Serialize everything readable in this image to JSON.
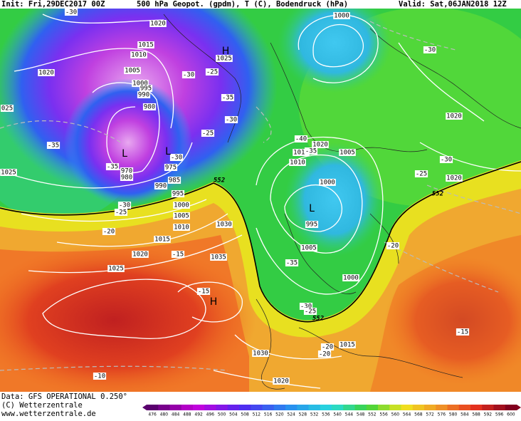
{
  "header": {
    "init": "Init: Fri,29DEC2017 00Z",
    "title": "500 hPa Geopot. (gpdm), T (C), Bodendruck (hPa)",
    "valid": "Valid: Sat,06JAN2018 12Z"
  },
  "pressure_labels": [
    "1020",
    "1015",
    "1010",
    "1005",
    "1000",
    "995",
    "990",
    "980",
    "975",
    "970",
    "980",
    "985",
    "990",
    "995",
    "1000",
    "1005",
    "1010",
    "1015",
    "1020",
    "1025",
    "1030",
    "1035",
    "1030",
    "1020",
    "1015",
    "1000",
    "1005",
    "995",
    "1000",
    "1005",
    "1010",
    "1015",
    "1020",
    "1000",
    "1020",
    "1020",
    "1020",
    "1025",
    "025",
    "1025"
  ],
  "temperature_labels": [
    "-30",
    "-30",
    "-30",
    "-25",
    "-35",
    "-30",
    "-25",
    "-30",
    "-35",
    "-35",
    "-30",
    "-25",
    "-20",
    "-15",
    "-15",
    "-10",
    "-40",
    "-35",
    "-35",
    "-30",
    "-25",
    "-20",
    "-20",
    "-20",
    "-25",
    "-30",
    "-15"
  ],
  "centers": [
    "L",
    "L",
    "L",
    "H",
    "H"
  ],
  "contour_labels": [
    "552",
    "552",
    "552"
  ],
  "footer": {
    "data": "Data: GFS OPERATIONAL 0.250°",
    "copyright": "(C) Wetterzentrale",
    "url": "www.wetterzentrale.de"
  },
  "legend": {
    "values": [
      476,
      480,
      484,
      488,
      492,
      496,
      500,
      504,
      508,
      512,
      516,
      520,
      524,
      528,
      532,
      536,
      540,
      544,
      548,
      552,
      556,
      560,
      564,
      568,
      572,
      576,
      580,
      584,
      588,
      592,
      596,
      600
    ]
  }
}
